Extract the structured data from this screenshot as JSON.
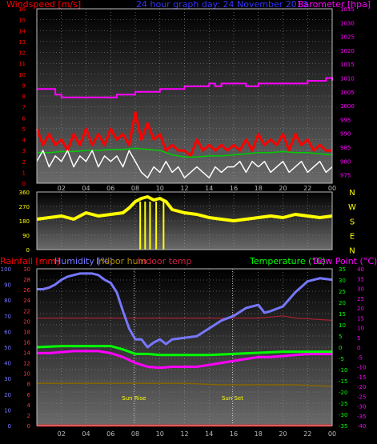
{
  "header": {
    "wind_title": "Windspeed [m/s]",
    "graph_title": "24 hour graph day: 24 November 2013",
    "baro_title": "Barometer [hpa]",
    "rain_title": "Rainfall [mm]",
    "humidity_title": "Humidity [%]",
    "indoor_hum_title": "Indoor hum",
    "indoor_temp_title": "Indoor temp",
    "temp_title": "Temperature (°C)",
    "dew_title": "Dew Point (°C)"
  },
  "compass": [
    "N",
    "W",
    "S",
    "E",
    "N"
  ],
  "markers": {
    "sunrise": "Sun Rise",
    "sunset": "Sun Set"
  },
  "colors": {
    "wind": "#ff0000",
    "gust": "#ffffff",
    "avgwind": "#00cc00",
    "baro": "#ff00ff",
    "winddir": "#ffff00",
    "humidity": "#7777ff",
    "indoor_hum": "#886600",
    "indoor_temp": "#aa2233",
    "temp": "#00ff00",
    "dew": "#ff00ff",
    "rain": "#ff0000",
    "axis_bg_top": "#000000",
    "axis_bg_bottom": "#666666"
  },
  "chart_data": [
    {
      "type": "line",
      "title": "24 hour graph day: 24 November 2013",
      "x_ticks": [
        "02",
        "04",
        "06",
        "08",
        "10",
        "12",
        "14",
        "16",
        "18",
        "20",
        "22",
        "00"
      ],
      "xlim": [
        0,
        24
      ],
      "y_left": {
        "label": "Windspeed [m/s]",
        "ticks": [
          0,
          1,
          2,
          3,
          4,
          5,
          6,
          7,
          8,
          9,
          10,
          11,
          12,
          13,
          14,
          15,
          16
        ],
        "lim": [
          0,
          16
        ]
      },
      "y_right": {
        "label": "Barometer [hpa]",
        "ticks": [
          975,
          980,
          985,
          990,
          995,
          1000,
          1005,
          1010,
          1015,
          1020,
          1025,
          1030,
          1035
        ],
        "lim": [
          972,
          1035
        ]
      },
      "series": [
        {
          "name": "Barometer [hpa]",
          "axis": "right",
          "x": [
            0,
            1,
            1.5,
            2,
            3,
            4,
            5,
            6,
            6.5,
            7,
            8,
            9,
            10,
            11,
            12,
            13,
            14,
            14.5,
            15,
            16,
            17,
            18,
            19,
            20,
            21,
            22,
            23,
            23.5,
            24
          ],
          "y": [
            1006,
            1006,
            1004,
            1003,
            1003,
            1003,
            1003,
            1003,
            1004,
            1004,
            1005,
            1005,
            1006,
            1006,
            1007,
            1007,
            1008,
            1007,
            1008,
            1008,
            1007,
            1008,
            1008,
            1008,
            1008,
            1009,
            1009,
            1010,
            1009
          ]
        },
        {
          "name": "Windspeed [m/s]",
          "axis": "left",
          "x": [
            0,
            0.5,
            1,
            1.5,
            2,
            2.5,
            3,
            3.5,
            4,
            4.5,
            5,
            5.5,
            6,
            6.5,
            7,
            7.5,
            8,
            8.5,
            9,
            9.5,
            10,
            10.5,
            11,
            11.5,
            12,
            12.5,
            13,
            13.5,
            14,
            14.5,
            15,
            15.5,
            16,
            16.5,
            17,
            17.5,
            18,
            18.5,
            19,
            19.5,
            20,
            20.5,
            21,
            21.5,
            22,
            22.5,
            23,
            23.5,
            24
          ],
          "y": [
            5,
            3.5,
            4.5,
            3.5,
            4,
            3,
            4.5,
            3.5,
            5,
            3.5,
            4.5,
            3.5,
            5,
            4,
            4.5,
            3.5,
            6.5,
            4,
            5.5,
            4,
            4.5,
            3,
            3.5,
            3,
            3,
            2.5,
            4,
            3,
            3.5,
            3,
            3.5,
            3,
            3.5,
            3,
            4,
            3,
            4.5,
            3.5,
            4,
            3.5,
            4.5,
            3,
            4.5,
            3.5,
            4,
            3,
            3.5,
            3,
            3
          ]
        },
        {
          "name": "Average windspeed",
          "axis": "left",
          "x": [
            0,
            1,
            2,
            3,
            4,
            5,
            6,
            7,
            8,
            9,
            10,
            11,
            12,
            13,
            14,
            15,
            16,
            17,
            18,
            19,
            20,
            21,
            22,
            23,
            24
          ],
          "y": [
            2.8,
            2.8,
            2.9,
            2.9,
            3,
            3,
            3.1,
            3.1,
            3.2,
            3.1,
            3,
            2.6,
            2.4,
            2.4,
            2.5,
            2.5,
            2.6,
            2.7,
            2.8,
            2.8,
            2.9,
            2.8,
            2.8,
            2.7,
            2.6
          ]
        },
        {
          "name": "Wind gust",
          "axis": "left",
          "x": [
            0,
            0.5,
            1,
            1.5,
            2,
            2.5,
            3,
            3.5,
            4,
            4.5,
            5,
            5.5,
            6,
            6.5,
            7,
            7.5,
            8,
            8.5,
            9,
            9.5,
            10,
            10.5,
            11,
            11.5,
            12,
            12.5,
            13,
            13.5,
            14,
            14.5,
            15,
            15.5,
            16,
            16.5,
            17,
            17.5,
            18,
            18.5,
            19,
            19.5,
            20,
            20.5,
            21,
            21.5,
            22,
            22.5,
            23,
            23.5,
            24
          ],
          "y": [
            2,
            3,
            1.5,
            2.5,
            2,
            3,
            1.5,
            2.5,
            2,
            3,
            1.5,
            2.5,
            2,
            2.5,
            1.5,
            3,
            2,
            1,
            0.5,
            1.5,
            1,
            2,
            1,
            1.5,
            0.5,
            1,
            1.5,
            1,
            0.5,
            1.5,
            1,
            1.5,
            1.5,
            2,
            1,
            2,
            1.5,
            2,
            1,
            1.5,
            2,
            1,
            1.5,
            2,
            1,
            1.5,
            2,
            1,
            1.5
          ]
        }
      ]
    },
    {
      "type": "line",
      "title": "",
      "xlim": [
        0,
        24
      ],
      "y_left": {
        "label": "",
        "ticks": [
          0,
          90,
          180,
          270,
          360
        ],
        "lim": [
          0,
          360
        ]
      },
      "y_right": {
        "label": "",
        "ticks": [
          "N",
          "W",
          "S",
          "E",
          "N"
        ]
      },
      "series": [
        {
          "name": "",
          "x": [
            0,
            1,
            2,
            3,
            4,
            5,
            6,
            7,
            7.5,
            8,
            8.5,
            9,
            9.5,
            10,
            10.5,
            11,
            12,
            13,
            14,
            15,
            16,
            17,
            18,
            19,
            20,
            21,
            22,
            23,
            24
          ],
          "y": [
            190,
            200,
            210,
            190,
            230,
            210,
            220,
            230,
            260,
            300,
            320,
            330,
            310,
            320,
            300,
            250,
            230,
            220,
            200,
            190,
            180,
            190,
            200,
            210,
            200,
            220,
            210,
            200,
            210
          ]
        }
      ]
    },
    {
      "type": "line",
      "title": "",
      "xlim": [
        0,
        24
      ],
      "x_ticks": [
        "02",
        "04",
        "06",
        "08",
        "10",
        "12",
        "14",
        "16",
        "18",
        "20",
        "22",
        "00"
      ],
      "y_left_outer": {
        "label": "Rainfall [mm]",
        "ticks": [
          0,
          2,
          4,
          6,
          8,
          10,
          12,
          14,
          16,
          18,
          20,
          22,
          24,
          26,
          28,
          30
        ],
        "lim": [
          0,
          30
        ]
      },
      "y_left_inner": {
        "label": "Humidity [%]",
        "ticks": [
          0,
          10,
          20,
          30,
          40,
          50,
          60,
          70,
          80,
          90,
          100
        ],
        "lim": [
          0,
          100
        ]
      },
      "y_right_inner": {
        "label": "Temperature (°C)",
        "ticks": [
          -35,
          -30,
          -25,
          -20,
          -15,
          -10,
          -5,
          0,
          5,
          10,
          15,
          20,
          25,
          30,
          35
        ],
        "lim": [
          -35,
          35
        ]
      },
      "y_right_outer": {
        "label": "Dew Point (°C)",
        "ticks": [
          -40,
          -35,
          -30,
          -25,
          -20,
          -15,
          -10,
          -5,
          0,
          5,
          10,
          15,
          20,
          25,
          30,
          35,
          40
        ],
        "lim": [
          -40,
          40
        ]
      },
      "series": [
        {
          "name": "Humidity [%]",
          "axis": "humidity",
          "x": [
            0,
            0.5,
            1,
            1.5,
            2,
            2.5,
            3,
            3.5,
            4,
            4.5,
            5,
            5.5,
            6,
            6.5,
            7,
            7.5,
            8,
            8.5,
            9,
            9.5,
            10,
            10.5,
            11,
            12,
            13,
            14,
            15,
            16,
            17,
            18,
            18.5,
            19,
            20,
            21,
            22,
            23,
            24
          ],
          "y": [
            87,
            87,
            88,
            90,
            93,
            95,
            96,
            97,
            97,
            97,
            96,
            93,
            91,
            85,
            73,
            62,
            55,
            55,
            50,
            53,
            55,
            52,
            55,
            56,
            57,
            62,
            67,
            70,
            75,
            77,
            72,
            73,
            76,
            85,
            92,
            94,
            93
          ]
        },
        {
          "name": "Indoor hum",
          "axis": "humidity",
          "x": [
            0,
            3,
            6,
            9,
            12,
            15,
            18,
            21,
            24
          ],
          "y": [
            27,
            27,
            27,
            27,
            27,
            26,
            26,
            26,
            25
          ]
        },
        {
          "name": "Indoor temp",
          "axis": "temperature",
          "x": [
            0,
            3,
            6,
            9,
            12,
            15,
            18,
            20,
            21,
            24
          ],
          "y": [
            13,
            13,
            13,
            13,
            13,
            13,
            13,
            14,
            13,
            12
          ]
        },
        {
          "name": "Temperature (°C)",
          "axis": "temperature",
          "x": [
            0,
            2,
            4,
            6,
            7,
            8,
            9,
            10,
            11,
            12,
            14,
            16,
            18,
            20,
            22,
            24
          ],
          "y": [
            0,
            0.5,
            0.5,
            0.5,
            -1,
            -3,
            -3,
            -3.5,
            -3.5,
            -3.5,
            -3.5,
            -3,
            -2.5,
            -2,
            -2,
            -2
          ]
        },
        {
          "name": "Dew Point (°C)",
          "axis": "dewpoint",
          "x": [
            0,
            1,
            2,
            3,
            4,
            5,
            6,
            7,
            8,
            9,
            10,
            11,
            12,
            13,
            14,
            15,
            16,
            17,
            18,
            19,
            20,
            21,
            22,
            23,
            24
          ],
          "y": [
            -3,
            -3,
            -2.5,
            -2,
            -2,
            -2,
            -3,
            -5,
            -8,
            -10,
            -10.5,
            -10,
            -10,
            -10,
            -9,
            -8,
            -7,
            -6,
            -5,
            -5,
            -4.5,
            -4,
            -3.5,
            -3.5,
            -3.5
          ]
        },
        {
          "name": "Rainfall [mm]",
          "axis": "rain",
          "x": [
            0,
            24
          ],
          "y": [
            0,
            0
          ]
        }
      ],
      "vlines": [
        {
          "label": "Sun Rise",
          "x": 7.9
        },
        {
          "label": "Sun Set",
          "x": 15.9
        }
      ]
    }
  ]
}
